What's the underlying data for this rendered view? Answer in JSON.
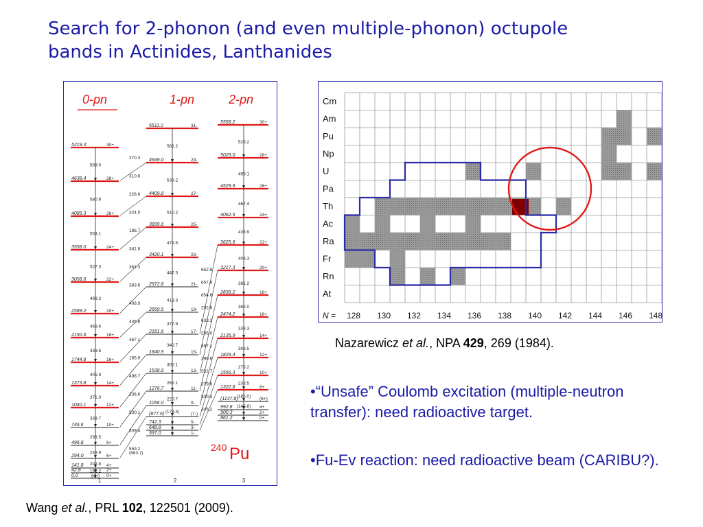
{
  "title": {
    "line1": "Search for 2-phonon (and even multiple-phonon) octupole",
    "line2": "bands in Actinides, Lanthanides"
  },
  "level_scheme": {
    "band_labels": [
      "0-pn",
      "1-pn",
      "2-pn"
    ],
    "nucleus_mass": "240",
    "nucleus_symbol": "Pu",
    "column_numbers": [
      "1",
      "2",
      "3"
    ],
    "band0_levels": [
      "5219.3",
      "4638.4",
      "4085.3",
      "3558.0",
      "3058.6",
      "2589.2",
      "2150.6",
      "1744.8",
      "1373.8",
      "1040.1",
      "746.6",
      "496.8",
      "294.0",
      "141.8",
      "42.8",
      "0.0"
    ],
    "band0_spins": [
      "30+",
      "28+",
      "26+",
      "24+",
      "22+",
      "20+",
      "18+",
      "16+",
      "14+",
      "12+",
      "10+",
      "8+",
      "6+",
      "4+",
      "2+",
      "0+"
    ],
    "band0_gammas": [
      "599.0",
      "580.9",
      "553.1",
      "527.3",
      "499.2",
      "469.6",
      "438.6",
      "405.9",
      "371.0",
      "333.7",
      "293.5",
      "249.9",
      "202.8",
      "152.2",
      "99.0"
    ],
    "band1_levels": [
      "5511.2",
      "4949.0",
      "4409.8",
      "3899.6",
      "3420.1",
      "2972.8",
      "2559.5",
      "2181.6",
      "1840.9",
      "1538.9",
      "1276.7",
      "1056.0",
      "(877.6)",
      "742.3",
      "648.8",
      "597.0"
    ],
    "band1_spins": [
      "31-",
      "29-",
      "27-",
      "25-",
      "23-",
      "21-",
      "19-",
      "17-",
      "15-",
      "13-",
      "11-",
      "9-",
      "(7-)",
      "5-",
      "3-",
      "1-"
    ],
    "band1_gammas": [
      "562.2",
      "539.2",
      "510.2",
      "479.5",
      "447.3",
      "413.3",
      "377.9",
      "340.7",
      "302.1",
      "262.1",
      "220.7",
      "(178.4)"
    ],
    "interband_gammas": [
      "270.3",
      "310.6",
      "228.6",
      "324.5",
      "186.7",
      "341.6",
      "361.3",
      "383.6",
      "408.9",
      "436.8",
      "467.1",
      "165.0",
      "498.7",
      "236.6",
      "530.1",
      "309.4",
      "559.2",
      "(583.7)"
    ],
    "band2_levels": [
      "5558.2",
      "5029.0",
      "4529.9",
      "4062.5",
      "3625.6",
      "3217.3",
      "2836.2",
      "2474.2",
      "2135.9",
      "1829.4",
      "1556.3",
      "1322.8",
      "(1137.8)",
      "992.8",
      "900.3",
      "861.2"
    ],
    "band2_spins": [
      "30+",
      "28+",
      "26+",
      "24+",
      "22+",
      "20+",
      "18+",
      "16+",
      "14+",
      "12+",
      "10+",
      "8+",
      "(6+)",
      "4+",
      "2+",
      "0+"
    ],
    "band2_gammas": [
      "529.2",
      "499.1",
      "467.4",
      "436.9",
      "408.3",
      "381.2",
      "362.0",
      "338.3",
      "306.5",
      "273.2",
      "233.5",
      "(185.0)",
      "(145.8)"
    ],
    "band2_to_1_gammas": [
      "652.8",
      "657.8",
      "654.6",
      "292.6",
      "633.3",
      "295.0",
      "597.1",
      "290.6",
      "552.7",
      "279.6",
      "500.3",
      "445.2"
    ]
  },
  "grid_chart": {
    "rows": [
      "Cm",
      "Am",
      "Pu",
      "Np",
      "U",
      "Pa",
      "Th",
      "Ac",
      "Ra",
      "Fr",
      "Rn",
      "At"
    ],
    "n_prefix": "N =",
    "columns": [
      "128",
      "130",
      "132",
      "134",
      "136",
      "138",
      "140",
      "142",
      "144",
      "146",
      "148"
    ],
    "shaded_cells": [
      [
        1,
        18
      ],
      [
        2,
        17
      ],
      [
        2,
        18
      ],
      [
        2,
        20
      ],
      [
        3,
        17
      ],
      [
        4,
        8
      ],
      [
        4,
        12
      ],
      [
        4,
        17
      ],
      [
        4,
        18
      ],
      [
        4,
        20
      ],
      [
        6,
        2
      ],
      [
        6,
        3
      ],
      [
        6,
        4
      ],
      [
        6,
        5
      ],
      [
        6,
        6
      ],
      [
        6,
        7
      ],
      [
        6,
        8
      ],
      [
        6,
        9
      ],
      [
        6,
        10
      ],
      [
        6,
        11
      ],
      [
        6,
        12
      ],
      [
        6,
        14
      ],
      [
        7,
        0
      ],
      [
        7,
        2
      ],
      [
        7,
        5
      ],
      [
        7,
        8
      ],
      [
        8,
        0
      ],
      [
        8,
        1
      ],
      [
        8,
        2
      ],
      [
        8,
        3
      ],
      [
        8,
        4
      ],
      [
        8,
        5
      ],
      [
        8,
        6
      ],
      [
        8,
        7
      ],
      [
        8,
        8
      ],
      [
        8,
        9
      ],
      [
        8,
        10
      ],
      [
        9,
        0
      ],
      [
        9,
        1
      ],
      [
        9,
        3
      ],
      [
        10,
        3
      ],
      [
        10,
        5
      ],
      [
        10,
        7
      ]
    ],
    "highlight_cell": [
      6,
      11
    ],
    "highlight_color": "#800000",
    "circle_color": "#e01818",
    "outline_color": "#2b2ba8"
  },
  "nazarewicz_ref": {
    "author": "Nazarewicz ",
    "etal": "et al.",
    "journal": ", NPA ",
    "volume": "429",
    "rest": ", 269 (1984)."
  },
  "wang_ref": {
    "author": "Wang ",
    "etal": "et al.",
    "journal": ", PRL ",
    "volume": "102",
    "rest": ", 122501 (2009)."
  },
  "bullets": [
    "•“Unsafe” Coulomb excitation (multiple-neutron transfer): need radioactive target.",
    "•Fu-Ev reaction: need radioactive beam (CARIBU?)."
  ],
  "colors": {
    "title": "#1a1aa6",
    "band_label": "#e01818",
    "level_highlight": "#e01818"
  }
}
